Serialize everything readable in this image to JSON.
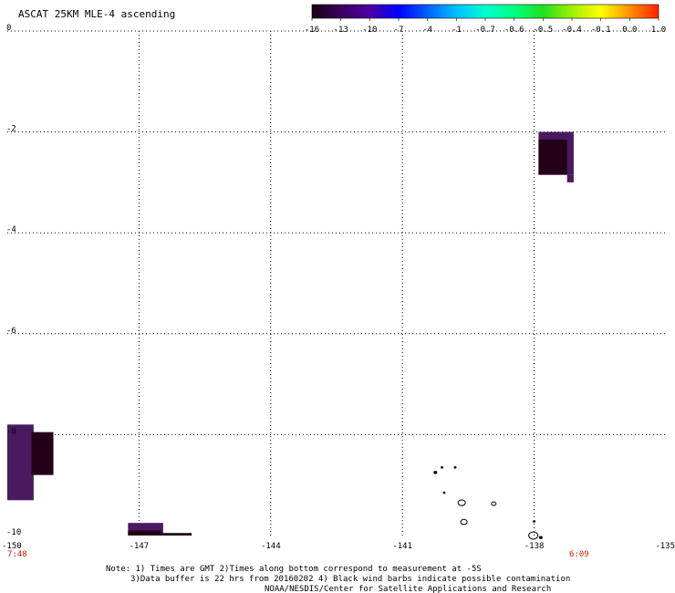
{
  "title": "ASCAT 25KM MLE-4 ascending",
  "colorbar": {
    "labels": [
      "-16",
      "-13",
      "-10",
      "-7",
      "-4",
      "-1",
      "-0.7",
      "-0.6",
      "-0.5",
      "-0.4",
      "-0.1",
      "0.0",
      "1.0"
    ],
    "colors": [
      "#1a0010",
      "#3a0060",
      "#4b00a0",
      "#0000ff",
      "#0060ff",
      "#00c0ff",
      "#00ffd0",
      "#00ff80",
      "#20e020",
      "#a0f000",
      "#ffff00",
      "#ff9000",
      "#ff2000"
    ]
  },
  "axes": {
    "x_ticks": [
      "-150",
      "-147",
      "-144",
      "-141",
      "-138",
      "-135"
    ],
    "y_ticks": [
      "0",
      "-2",
      "-4",
      "-6",
      "-8",
      "-10"
    ],
    "x_range": [
      -150,
      -135
    ],
    "y_range": [
      -10,
      0
    ]
  },
  "times": {
    "left": "7:48",
    "right": "6:09",
    "color": "#cc2200"
  },
  "notes": {
    "line1": "Note: 1) Times are GMT 2)Times along bottom correspond to measurement at -5S",
    "line2": "3)Data buffer is 22 hrs from 20160202 4) Black wind barbs indicate possible contamination",
    "line3": "NOAA/NESDIS/Center for Satellite Applications and Research"
  },
  "data_cells": [
    {
      "lon0": -137.9,
      "lon1": -137.1,
      "lat0": -2.0,
      "lat1": -2.85,
      "color": "#4a1a60"
    },
    {
      "lon0": -137.9,
      "lon1": -137.25,
      "lat0": -2.15,
      "lat1": -2.85,
      "color": "#240018"
    },
    {
      "lon0": -137.25,
      "lon1": -137.1,
      "lat0": -2.85,
      "lat1": -3.0,
      "color": "#4a1a60"
    },
    {
      "lon0": -150.0,
      "lon1": -149.4,
      "lat0": -7.8,
      "lat1": -9.3,
      "color": "#4a1a60"
    },
    {
      "lon0": -149.45,
      "lon1": -148.95,
      "lat0": -7.95,
      "lat1": -8.8,
      "color": "#240018"
    },
    {
      "lon0": -147.25,
      "lon1": -146.45,
      "lat0": -9.75,
      "lat1": -10.0,
      "color": "#4a1a60"
    },
    {
      "lon0": -147.25,
      "lon1": -146.5,
      "lat0": -9.9,
      "lat1": -10.0,
      "color": "#240018"
    },
    {
      "lon0": -146.5,
      "lon1": -145.8,
      "lat0": -9.95,
      "lat1": -10.0,
      "color": "#240018"
    }
  ],
  "islands": [
    {
      "lon": -140.25,
      "lat": -8.75,
      "size": 1.5
    },
    {
      "lon": -140.1,
      "lat": -8.65,
      "size": 1.0
    },
    {
      "lon": -139.8,
      "lat": -8.65,
      "size": 1.0
    },
    {
      "lon": -140.05,
      "lat": -9.15,
      "size": 1.0
    },
    {
      "lon": -139.65,
      "lat": -9.35,
      "size": 4.0
    },
    {
      "lon": -138.92,
      "lat": -9.37,
      "size": 2.5
    },
    {
      "lon": -139.6,
      "lat": -9.73,
      "size": 3.5
    },
    {
      "lon": -138.0,
      "lat": -9.72,
      "size": 1.0
    },
    {
      "lon": -138.02,
      "lat": -10.0,
      "size": 5.0
    },
    {
      "lon": -137.85,
      "lat": -10.04,
      "size": 1.5
    }
  ]
}
